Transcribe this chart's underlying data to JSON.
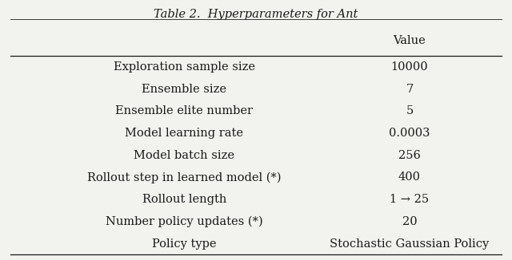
{
  "title": "Table 2.  Hyperparameters for Ant",
  "col_header": "Value",
  "rows": [
    [
      "Exploration sample size",
      "10000"
    ],
    [
      "Ensemble size",
      "7"
    ],
    [
      "Ensemble elite number",
      "5"
    ],
    [
      "Model learning rate",
      "0.0003"
    ],
    [
      "Model batch size",
      "256"
    ],
    [
      "Rollout step in learned model (*)",
      "400"
    ],
    [
      "Rollout length",
      "1 → 25"
    ],
    [
      "Number policy updates (*)",
      "20"
    ],
    [
      "Policy type",
      "Stochastic Gaussian Policy"
    ]
  ],
  "bg_color": "#f2f2ee",
  "text_color": "#1a1a1a",
  "fontsize": 10.5,
  "title_fontsize": 10.5
}
